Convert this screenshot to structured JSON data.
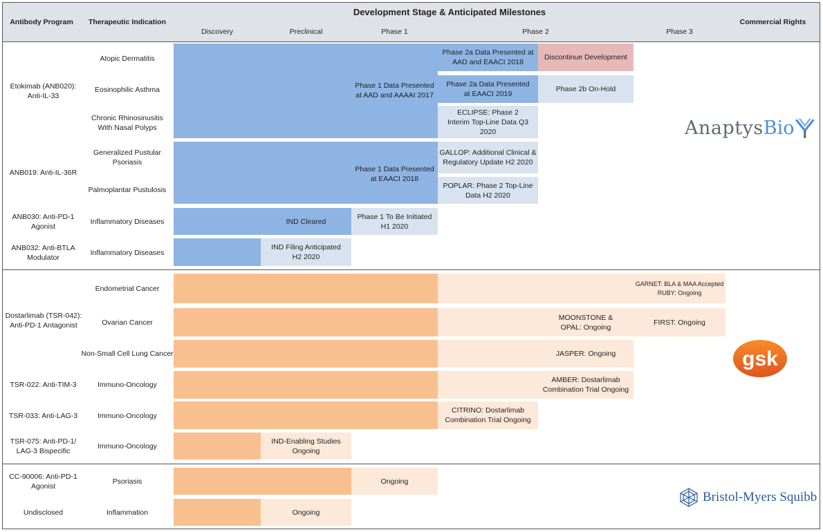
{
  "header": {
    "program": "Antibody Program",
    "indication": "Therapeutic Indication",
    "stage_title": "Development Stage & Anticipated Milestones",
    "rights": "Commercial Rights",
    "stages": [
      "Discovery",
      "Preclinical",
      "Phase 1",
      "Phase 2",
      "Phase 3"
    ]
  },
  "programs": [
    {
      "id": "etokimab",
      "name": "Etokimab (ANB020):\nAnti-IL-33"
    },
    {
      "id": "anb019",
      "name": "ANB019: Anti-IL-36R"
    },
    {
      "id": "anb030",
      "name": "ANB030: Anti-PD-1\nAgonist"
    },
    {
      "id": "anb032",
      "name": "ANB032: Anti-BTLA\nModulator"
    },
    {
      "id": "dostarlimab",
      "name": "Dostarlimab (TSR-042):\nAnti-PD-1 Antagonist"
    },
    {
      "id": "tsr022",
      "name": "TSR-022: Anti-TIM-3"
    },
    {
      "id": "tsr033",
      "name": "TSR-033: Anti-LAG-3"
    },
    {
      "id": "tsr075",
      "name": "TSR-075: Anti-PD-1/\nLAG-3 Bispecific"
    },
    {
      "id": "cc90006",
      "name": "CC-90006: Anti-PD-1\nAgonist"
    },
    {
      "id": "undisclosed",
      "name": "Undisclosed"
    }
  ],
  "indications": [
    "Atopic Dermatitis",
    "Eosinophilic Asthma",
    "Chronic Rhinosinusitis\nWith Nasal Polyps",
    "Generalized Pustular\nPsoriasis",
    "Palmoplantar Pustulosis",
    "Inflammatory Diseases",
    "Inflammatory Diseases",
    "Endometrial Cancer",
    "Ovarian Cancer",
    "Non-Small Cell Lung Cancer",
    "Immuno-Oncology",
    "Immuno-Oncology",
    "Immuno-Oncology",
    "Psoriasis",
    "Inflammation"
  ],
  "milestones": {
    "etok_p1": "Phase 1 Data Presented\nat AAD and AAAAI 2017",
    "ad_p2": "Phase 2a Data Presented at\nAAD and EAACI 2018",
    "ad_disc": "Discontinue Development",
    "ea_p2": "Phase 2a Data Presented\nat EAACI 2019",
    "ea_hold": "Phase 2b On-Hold",
    "crs_p2": "ECLIPSE: Phase 2\nInterim Top-Line Data Q3\n2020",
    "anb019_p1": "Phase 1 Data Presented\nat EAACI 2018",
    "gpp_p2": "GALLOP: Additional Clinical &\nRegulatory Update H2 2020",
    "ppp_p2": "POPLAR: Phase 2 Top-Line\nData H2 2020",
    "anb030_pre": "IND Cleared",
    "anb030_p1": "Phase 1 To Be Initiated\nH1 2020",
    "anb032_pre": "IND Filing Anticipated\nH2 2020",
    "endo": "GARNET: BLA & MAA Accepted\nRUBY: Ongoing",
    "ovarian_p2": "MOONSTONE &\nOPAL: Ongoing",
    "ovarian_p3": "FIRST: Ongoing",
    "nsclc": "JASPER: Ongoing",
    "tsr022": "AMBER: Dostarlimab\nCombination Trial Ongoing",
    "tsr033": "CITRINO: Dostarlimab\nCombination Trial Ongoing",
    "tsr075": "IND-Enabling Studies\nOngoing",
    "cc90006": "Ongoing",
    "undisclosed": "Ongoing"
  },
  "partners": {
    "anaptys_a": "Anaptys",
    "anaptys_b": "Bio",
    "gsk": "gsk",
    "bms": "Bristol-Myers Squibb"
  },
  "colors": {
    "blue": "#8eb4e3",
    "blue_light": "#d9e3ef",
    "red": "#e6b8b8",
    "orange": "#f9c08f",
    "orange_light": "#fde9d9"
  }
}
